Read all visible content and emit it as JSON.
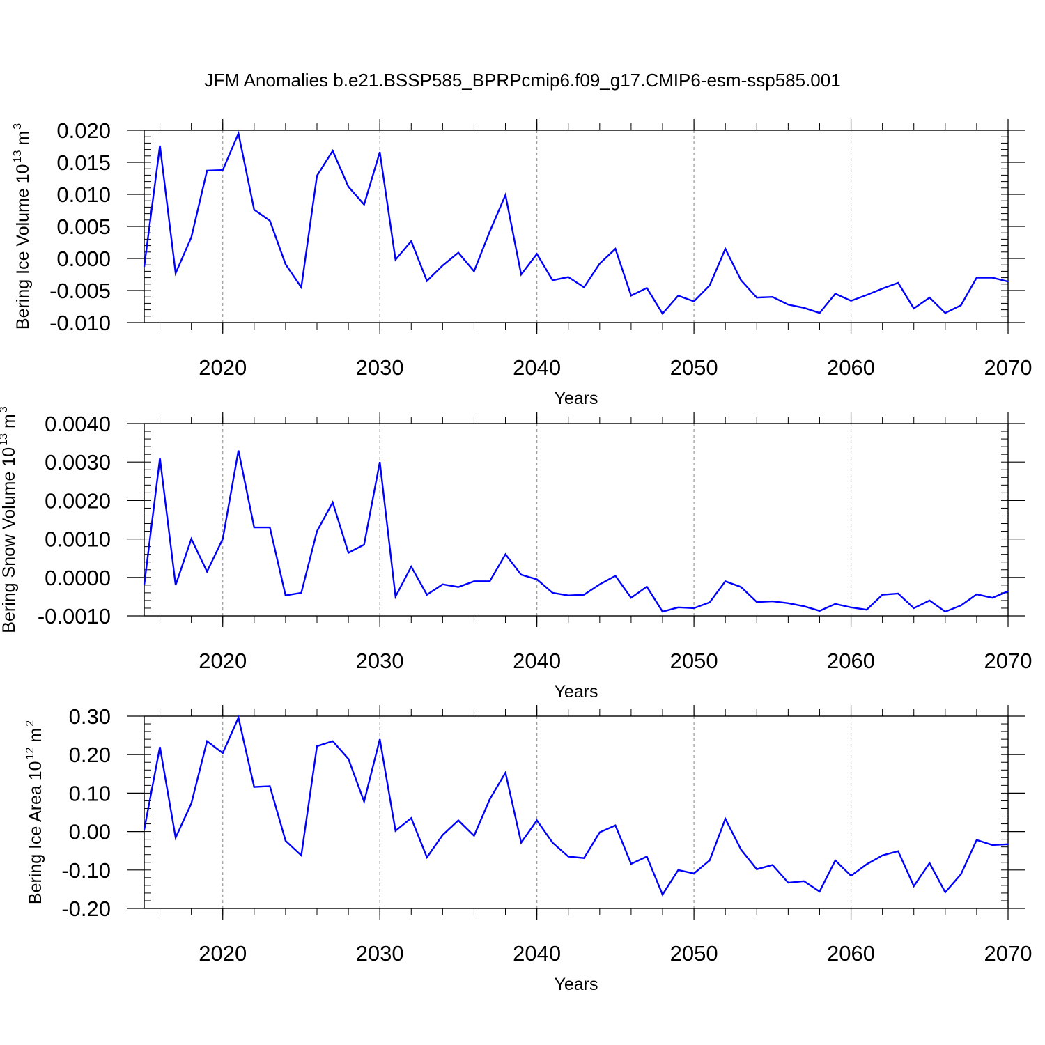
{
  "title": "JFM Anomalies b.e21.BSSP585_BPRPcmip6.f09_g17.CMIP6-esm-ssp585.001",
  "chart_data": [
    {
      "type": "line",
      "ylabel": [
        {
          "text": "Bering Ice Volume 10"
        },
        {
          "text": "13",
          "sup": true
        },
        {
          "text": "m"
        },
        {
          "text": "3",
          "sup": true
        }
      ],
      "xlabel": "Years",
      "x": [
        2015,
        2016,
        2017,
        2018,
        2019,
        2020,
        2021,
        2022,
        2023,
        2024,
        2025,
        2026,
        2027,
        2028,
        2029,
        2030,
        2031,
        2032,
        2033,
        2034,
        2035,
        2036,
        2037,
        2038,
        2039,
        2040,
        2041,
        2042,
        2043,
        2044,
        2045,
        2046,
        2047,
        2048,
        2049,
        2050,
        2051,
        2052,
        2053,
        2054,
        2055,
        2056,
        2057,
        2058,
        2059,
        2060,
        2061,
        2062,
        2063,
        2064,
        2065,
        2066,
        2067,
        2068,
        2069,
        2070
      ],
      "series": [
        {
          "color": "#0000ff",
          "values": [
            -0.0013,
            0.0176,
            -0.0023,
            0.0033,
            0.0137,
            0.0138,
            0.0195,
            0.0076,
            0.0059,
            -0.0009,
            -0.0045,
            0.0129,
            0.0168,
            0.0112,
            0.0084,
            0.0166,
            -0.0002,
            0.0027,
            -0.0035,
            -0.0011,
            0.0009,
            -0.002,
            0.0042,
            0.0099,
            -0.0025,
            0.0007,
            -0.0034,
            -0.0029,
            -0.0045,
            -0.0008,
            0.0015,
            -0.0058,
            -0.0046,
            -0.0086,
            -0.0058,
            -0.0067,
            -0.0042,
            0.0015,
            -0.0034,
            -0.0061,
            -0.006,
            -0.0072,
            -0.0077,
            -0.0085,
            -0.0055,
            -0.0066,
            -0.0057,
            -0.0047,
            -0.0038,
            -0.0078,
            -0.0061,
            -0.0085,
            -0.0073,
            -0.003,
            -0.003,
            -0.0036
          ]
        }
      ],
      "xlim": [
        2015,
        2070
      ],
      "xticks": [
        2020,
        2030,
        2040,
        2050,
        2060,
        2070
      ],
      "ylim": [
        -0.01,
        0.02
      ],
      "yticks": [
        {
          "value": -0.01,
          "label": "-0.010"
        },
        {
          "value": -0.005,
          "label": "-0.005"
        },
        {
          "value": 0,
          "label": "0.000"
        },
        {
          "value": 0.005,
          "label": "0.005"
        },
        {
          "value": 0.01,
          "label": "0.010"
        },
        {
          "value": 0.015,
          "label": "0.015"
        },
        {
          "value": 0.02,
          "label": "0.020"
        }
      ],
      "xgrid": true
    },
    {
      "type": "line",
      "ylabel": [
        {
          "text": "Bering Snow Volume 10"
        },
        {
          "text": "13",
          "sup": true
        },
        {
          "text": "m"
        },
        {
          "text": "3",
          "sup": true
        }
      ],
      "xlabel": "Years",
      "x": [
        2015,
        2016,
        2017,
        2018,
        2019,
        2020,
        2021,
        2022,
        2023,
        2024,
        2025,
        2026,
        2027,
        2028,
        2029,
        2030,
        2031,
        2032,
        2033,
        2034,
        2035,
        2036,
        2037,
        2038,
        2039,
        2040,
        2041,
        2042,
        2043,
        2044,
        2045,
        2046,
        2047,
        2048,
        2049,
        2050,
        2051,
        2052,
        2053,
        2054,
        2055,
        2056,
        2057,
        2058,
        2059,
        2060,
        2061,
        2062,
        2063,
        2064,
        2065,
        2066,
        2067,
        2068,
        2069,
        2070
      ],
      "series": [
        {
          "color": "#0000ff",
          "values": [
            -0.0002,
            0.0031,
            -0.0002,
            0.001,
            0.00015,
            0.001,
            0.0033,
            0.0013,
            0.0013,
            -0.00047,
            -0.0004,
            0.0012,
            0.00195,
            0.00064,
            0.00085,
            0.003,
            -0.0005,
            0.00028,
            -0.00045,
            -0.00018,
            -0.00025,
            -0.0001,
            -0.0001,
            0.0006,
            7e-05,
            -5e-05,
            -0.0004,
            -0.00047,
            -0.00045,
            -0.00018,
            4e-05,
            -0.00053,
            -0.00024,
            -0.00089,
            -0.00078,
            -0.0008,
            -0.00065,
            -0.0001,
            -0.00025,
            -0.00064,
            -0.00062,
            -0.00067,
            -0.00075,
            -0.00087,
            -0.00069,
            -0.00078,
            -0.00084,
            -0.00045,
            -0.00042,
            -0.0008,
            -0.0006,
            -0.00089,
            -0.00073,
            -0.00044,
            -0.00053,
            -0.00036
          ]
        }
      ],
      "xlim": [
        2015,
        2070
      ],
      "xticks": [
        2020,
        2030,
        2040,
        2050,
        2060,
        2070
      ],
      "ylim": [
        -0.001,
        0.004
      ],
      "yticks": [
        {
          "value": -0.001,
          "label": "-0.0010"
        },
        {
          "value": 0,
          "label": "0.0000"
        },
        {
          "value": 0.001,
          "label": "0.0010"
        },
        {
          "value": 0.002,
          "label": "0.0020"
        },
        {
          "value": 0.003,
          "label": "0.0030"
        },
        {
          "value": 0.004,
          "label": "0.0040"
        }
      ],
      "xgrid": true
    },
    {
      "type": "line",
      "ylabel": [
        {
          "text": "Bering Ice Area 10"
        },
        {
          "text": "12",
          "sup": true
        },
        {
          "text": "m"
        },
        {
          "text": "2",
          "sup": true
        }
      ],
      "xlabel": "Years",
      "x": [
        2015,
        2016,
        2017,
        2018,
        2019,
        2020,
        2021,
        2022,
        2023,
        2024,
        2025,
        2026,
        2027,
        2028,
        2029,
        2030,
        2031,
        2032,
        2033,
        2034,
        2035,
        2036,
        2037,
        2038,
        2039,
        2040,
        2041,
        2042,
        2043,
        2044,
        2045,
        2046,
        2047,
        2048,
        2049,
        2050,
        2051,
        2052,
        2053,
        2054,
        2055,
        2056,
        2057,
        2058,
        2059,
        2060,
        2061,
        2062,
        2063,
        2064,
        2065,
        2066,
        2067,
        2068,
        2069,
        2070
      ],
      "series": [
        {
          "color": "#0000ff",
          "values": [
            0.005,
            0.22,
            -0.016,
            0.073,
            0.235,
            0.204,
            0.296,
            0.116,
            0.118,
            -0.024,
            -0.062,
            0.222,
            0.235,
            0.189,
            0.078,
            0.24,
            0.002,
            0.035,
            -0.067,
            -0.009,
            0.029,
            -0.011,
            0.084,
            0.153,
            -0.029,
            0.029,
            -0.029,
            -0.065,
            -0.069,
            -0.002,
            0.016,
            -0.084,
            -0.065,
            -0.164,
            -0.1,
            -0.109,
            -0.075,
            0.033,
            -0.047,
            -0.098,
            -0.087,
            -0.133,
            -0.129,
            -0.156,
            -0.075,
            -0.115,
            -0.085,
            -0.062,
            -0.051,
            -0.142,
            -0.082,
            -0.158,
            -0.111,
            -0.022,
            -0.035,
            -0.033
          ]
        }
      ],
      "xlim": [
        2015,
        2070
      ],
      "xticks": [
        2020,
        2030,
        2040,
        2050,
        2060,
        2070
      ],
      "ylim": [
        -0.2,
        0.3
      ],
      "yticks": [
        {
          "value": -0.2,
          "label": "-0.20"
        },
        {
          "value": -0.1,
          "label": "-0.10"
        },
        {
          "value": 0,
          "label": "0.00"
        },
        {
          "value": 0.1,
          "label": "0.10"
        },
        {
          "value": 0.2,
          "label": "0.20"
        },
        {
          "value": 0.3,
          "label": "0.30"
        }
      ],
      "xgrid": true
    }
  ]
}
